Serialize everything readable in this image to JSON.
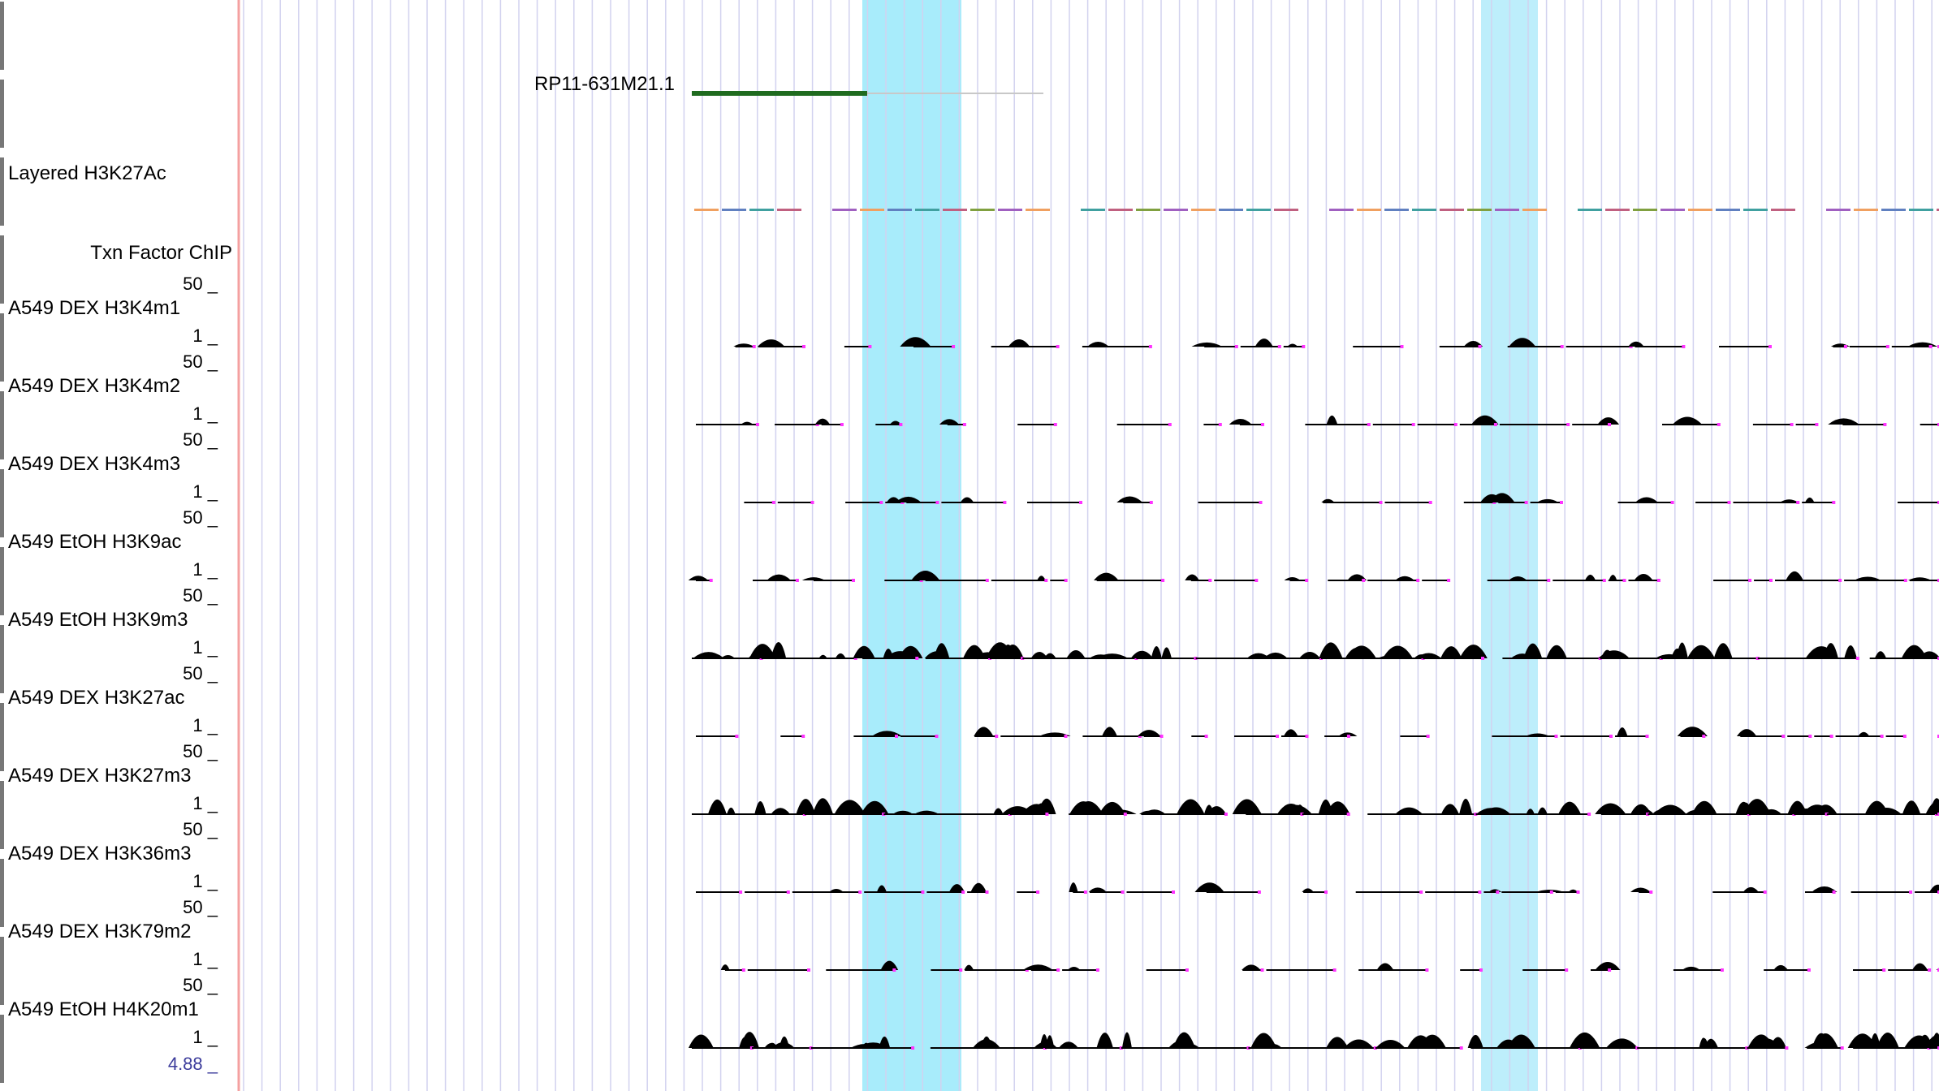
{
  "browser": {
    "colors": {
      "highlight": "#a8ecfb",
      "highlight2": "#bdeefb",
      "gridline": "#d2d2ef",
      "separator": "#f4a0a0",
      "gene": "#1f6b1f",
      "gene_line": "#c8c8c8",
      "signal": "#000000",
      "gap": "#ff33ff",
      "scale_blue": "#3b3b9b"
    },
    "gene": {
      "name": "RP11-631M21.1"
    },
    "tracks": {
      "layered_label": "Layered H3K27Ac",
      "group_label": "Txn Factor ChIP",
      "items": [
        {
          "name": "A549 DEX H3K4m1",
          "max": "50 _",
          "min": "1 _"
        },
        {
          "name": "A549 DEX H3K4m2",
          "max": "50 _",
          "min": "1 _"
        },
        {
          "name": "A549 DEX H3K4m3",
          "max": "50 _",
          "min": "1 _"
        },
        {
          "name": "A549 EtOH H3K9ac",
          "max": "50 _",
          "min": "1 _"
        },
        {
          "name": "A549 EtOH H3K9m3",
          "max": "50 _",
          "min": "1 _"
        },
        {
          "name": "A549 DEX H3K27ac",
          "max": "50 _",
          "min": "1 _"
        },
        {
          "name": "A549 DEX H3K27m3",
          "max": "50 _",
          "min": "1 _"
        },
        {
          "name": "A549 DEX H3K36m3",
          "max": "50 _",
          "min": "1 _"
        },
        {
          "name": "A549 DEX H3K79m2",
          "max": "50 _",
          "min": "1 _"
        },
        {
          "name": "A549 EtOH H4K20m1",
          "max": "50 _",
          "min": "1 _"
        }
      ],
      "bottom_scale": "4.88 _"
    }
  }
}
